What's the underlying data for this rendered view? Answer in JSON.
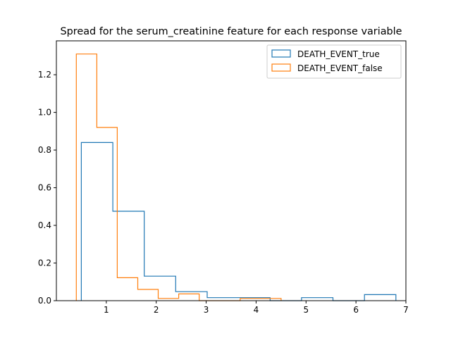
{
  "chart_data": {
    "type": "histogram",
    "title": "Spread for the serum_creatinine feature for each response variable",
    "xlabel": "",
    "ylabel": "",
    "xlim": [
      0.0,
      7.0
    ],
    "ylim": [
      0.0,
      1.38
    ],
    "xticks": [
      1,
      2,
      3,
      4,
      5,
      6,
      7
    ],
    "yticks": [
      0.0,
      0.2,
      0.4,
      0.6,
      0.8,
      1.0,
      1.2
    ],
    "histtype": "step",
    "grid": false,
    "legend_position": "top-right",
    "series": [
      {
        "name": "DEATH_EVENT_true",
        "color": "#1f77b4",
        "edges": [
          0.5,
          1.13,
          1.76,
          2.39,
          3.02,
          3.65,
          4.28,
          4.91,
          5.54,
          6.17,
          6.8
        ],
        "values": [
          0.84,
          0.475,
          0.13,
          0.048,
          0.016,
          0.016,
          0.0,
          0.016,
          0.0,
          0.032
        ]
      },
      {
        "name": "DEATH_EVENT_false",
        "color": "#ff7f0e",
        "edges": [
          0.4,
          0.81,
          1.22,
          1.63,
          2.04,
          2.45,
          2.86,
          3.27,
          3.68,
          4.09,
          4.5
        ],
        "values": [
          1.31,
          0.92,
          0.122,
          0.06,
          0.012,
          0.036,
          0.0,
          0.0,
          0.012,
          0.012
        ]
      }
    ]
  }
}
